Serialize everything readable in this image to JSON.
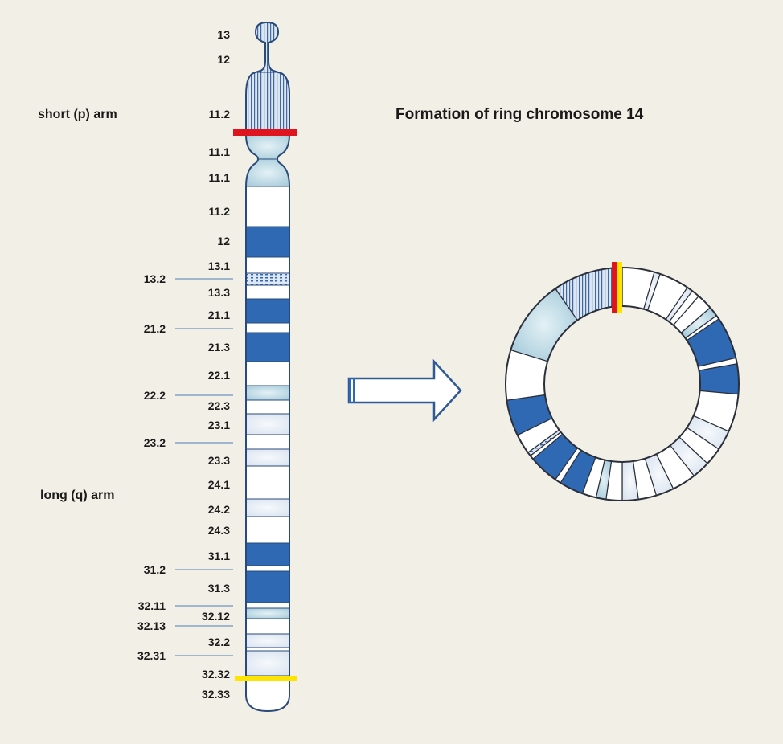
{
  "title": "Formation of ring chromosome 14",
  "arms": {
    "short": "short (p) arm",
    "long": "long (q) arm"
  },
  "colors": {
    "background": "#f2efe6",
    "dark_band": "#2f69b3",
    "outline": "#2a4a7a",
    "break_red": "#e0141e",
    "break_yellow": "#ffe400",
    "light_band": "#c9dde8"
  },
  "bands": [
    {
      "label": "13",
      "side": "right",
      "type": "pstalk"
    },
    {
      "label": "12",
      "side": "right",
      "type": "pstalk"
    },
    {
      "label": "11.2",
      "side": "right",
      "type": "pstripe"
    },
    {
      "label": "11.1",
      "side": "right",
      "type": "acen"
    },
    {
      "label": "11.1",
      "side": "right",
      "type": "acen"
    },
    {
      "label": "11.2",
      "side": "right",
      "type": "white"
    },
    {
      "label": "12",
      "side": "right",
      "type": "dark"
    },
    {
      "label": "13.1",
      "side": "right",
      "type": "white"
    },
    {
      "label": "13.2",
      "side": "left",
      "type": "dotted"
    },
    {
      "label": "13.3",
      "side": "right",
      "type": "white"
    },
    {
      "label": "21.1",
      "side": "right",
      "type": "dark"
    },
    {
      "label": "21.2",
      "side": "left",
      "type": "white"
    },
    {
      "label": "21.3",
      "side": "right",
      "type": "dark"
    },
    {
      "label": "22.1",
      "side": "right",
      "type": "white"
    },
    {
      "label": "22.2",
      "side": "left",
      "type": "light"
    },
    {
      "label": "22.3",
      "side": "right",
      "type": "white"
    },
    {
      "label": "23.1",
      "side": "right",
      "type": "pale"
    },
    {
      "label": "23.2",
      "side": "left",
      "type": "white"
    },
    {
      "label": "23.3",
      "side": "right",
      "type": "pale"
    },
    {
      "label": "24.1",
      "side": "right",
      "type": "white"
    },
    {
      "label": "24.2",
      "side": "right",
      "type": "pale"
    },
    {
      "label": "24.3",
      "side": "right",
      "type": "white"
    },
    {
      "label": "31.1",
      "side": "right",
      "type": "dark"
    },
    {
      "label": "31.2",
      "side": "left",
      "type": "white"
    },
    {
      "label": "31.3",
      "side": "right",
      "type": "dark"
    },
    {
      "label": "32.11",
      "side": "left",
      "type": "white"
    },
    {
      "label": "32.12",
      "side": "right",
      "type": "light"
    },
    {
      "label": "32.13",
      "side": "left",
      "type": "white"
    },
    {
      "label": "32.2",
      "side": "right",
      "type": "pale"
    },
    {
      "label": "32.31",
      "side": "left",
      "type": "white"
    },
    {
      "label": "32.32",
      "side": "right",
      "type": "pale"
    },
    {
      "label": "32.33",
      "side": "right",
      "type": "white"
    }
  ]
}
